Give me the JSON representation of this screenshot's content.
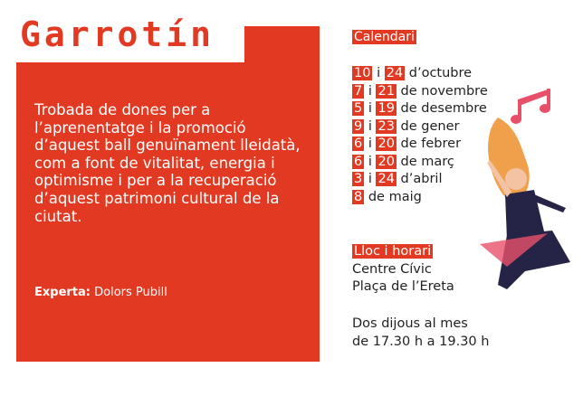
{
  "title": "Garrotín",
  "description": "Trobada de dones per a l’aprenentatge i la promoció d’aquest ball genuïnament lleidatà, com a font de vitalitat, energia i optimisme i per a la recuperació d’aquest patrimoni cultural de la ciutat.",
  "expert": {
    "label": "Experta:",
    "name": "Dolors Pubill"
  },
  "calendar": {
    "heading": "Calendari",
    "rows": [
      {
        "d1": "10",
        "sep": "i",
        "d2": "24",
        "month": "d’octubre"
      },
      {
        "d1": "7",
        "sep": "i",
        "d2": "21",
        "month": "de novembre"
      },
      {
        "d1": "5",
        "sep": "i",
        "d2": "19",
        "month": "de desembre"
      },
      {
        "d1": "9",
        "sep": "i",
        "d2": "23",
        "month": "de gener"
      },
      {
        "d1": "6",
        "sep": "i",
        "d2": "20",
        "month": "de febrer"
      },
      {
        "d1": "6",
        "sep": "i",
        "d2": "20",
        "month": "de març"
      },
      {
        "d1": "3",
        "sep": "i",
        "d2": "24",
        "month": "d’abril"
      },
      {
        "d1": "8",
        "month": "de maig"
      }
    ]
  },
  "location": {
    "heading": "Lloc i horari",
    "line1": "Centre Cívic",
    "line2": "Plaça de l’Ereta"
  },
  "schedule": {
    "line1": "Dos dijous al mes",
    "line2": "de 17.30 h a 19.30 h"
  },
  "colors": {
    "accent": "#e23a22",
    "text": "#222222"
  },
  "illustration": "dancing-woman-with-music-note"
}
